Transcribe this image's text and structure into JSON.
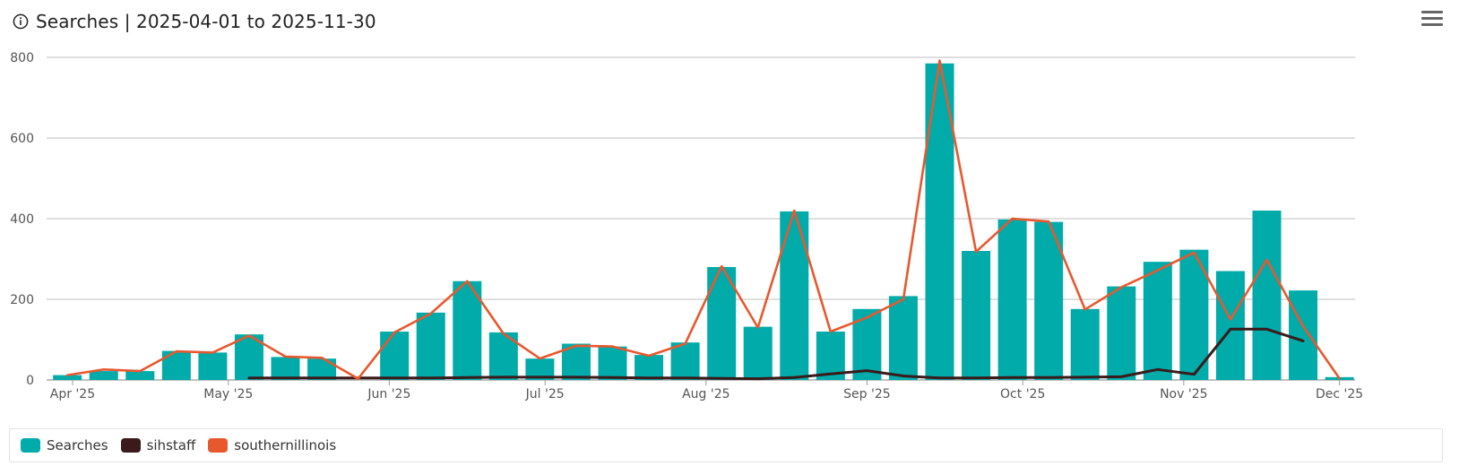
{
  "header": {
    "title": "Searches | 2025-04-01 to 2025-11-30"
  },
  "colors": {
    "searches": "#00ABAA",
    "sihstaff": "#3A1A1A",
    "southernillinois": "#E8582E",
    "grid": "#CCCCCC"
  },
  "chart_data": {
    "type": "bar",
    "title": "Searches | 2025-04-01 to 2025-11-30",
    "ylim": [
      0,
      800
    ],
    "yticks": [
      0,
      200,
      400,
      600,
      800
    ],
    "grid": true,
    "legend": "bottom-left",
    "xticks": [
      {
        "label": "Apr '25",
        "date": "2025-04-01"
      },
      {
        "label": "May '25",
        "date": "2025-05-01"
      },
      {
        "label": "Jun '25",
        "date": "2025-06-01"
      },
      {
        "label": "Jul '25",
        "date": "2025-07-01"
      },
      {
        "label": "Aug '25",
        "date": "2025-08-01"
      },
      {
        "label": "Sep '25",
        "date": "2025-09-01"
      },
      {
        "label": "Oct '25",
        "date": "2025-10-01"
      },
      {
        "label": "Nov '25",
        "date": "2025-11-01"
      },
      {
        "label": "Dec '25",
        "date": "2025-12-01"
      }
    ],
    "series": [
      {
        "name": "Searches",
        "kind": "bar",
        "points": [
          [
            "2025-03-31",
            12
          ],
          [
            "2025-04-07",
            22
          ],
          [
            "2025-04-14",
            22
          ],
          [
            "2025-04-21",
            72
          ],
          [
            "2025-04-28",
            68
          ],
          [
            "2025-05-05",
            113
          ],
          [
            "2025-05-12",
            57
          ],
          [
            "2025-05-19",
            53
          ],
          [
            "2025-06-02",
            120
          ],
          [
            "2025-06-09",
            167
          ],
          [
            "2025-06-16",
            245
          ],
          [
            "2025-06-23",
            118
          ],
          [
            "2025-06-30",
            53
          ],
          [
            "2025-07-07",
            90
          ],
          [
            "2025-07-14",
            83
          ],
          [
            "2025-07-21",
            62
          ],
          [
            "2025-07-28",
            93
          ],
          [
            "2025-08-04",
            280
          ],
          [
            "2025-08-11",
            132
          ],
          [
            "2025-08-18",
            418
          ],
          [
            "2025-08-25",
            120
          ],
          [
            "2025-09-01",
            176
          ],
          [
            "2025-09-08",
            208
          ],
          [
            "2025-09-15",
            785
          ],
          [
            "2025-09-22",
            320
          ],
          [
            "2025-09-29",
            398
          ],
          [
            "2025-10-06",
            392
          ],
          [
            "2025-10-13",
            176
          ],
          [
            "2025-10-20",
            232
          ],
          [
            "2025-10-27",
            293
          ],
          [
            "2025-11-03",
            323
          ],
          [
            "2025-11-10",
            270
          ],
          [
            "2025-11-17",
            420
          ],
          [
            "2025-11-24",
            222
          ],
          [
            "2025-12-01",
            7
          ]
        ]
      },
      {
        "name": "sihstaff",
        "kind": "line",
        "points": [
          [
            "2025-05-05",
            5
          ],
          [
            "2025-05-12",
            5
          ],
          [
            "2025-05-19",
            5
          ],
          [
            "2025-05-26",
            5
          ],
          [
            "2025-06-02",
            5
          ],
          [
            "2025-06-09",
            5
          ],
          [
            "2025-06-16",
            6
          ],
          [
            "2025-06-23",
            7
          ],
          [
            "2025-06-30",
            7
          ],
          [
            "2025-07-07",
            7
          ],
          [
            "2025-07-14",
            6
          ],
          [
            "2025-07-21",
            5
          ],
          [
            "2025-07-28",
            5
          ],
          [
            "2025-08-04",
            4
          ],
          [
            "2025-08-11",
            3
          ],
          [
            "2025-08-18",
            6
          ],
          [
            "2025-08-25",
            15
          ],
          [
            "2025-09-01",
            23
          ],
          [
            "2025-09-08",
            10
          ],
          [
            "2025-09-15",
            5
          ],
          [
            "2025-09-22",
            5
          ],
          [
            "2025-09-29",
            6
          ],
          [
            "2025-10-06",
            6
          ],
          [
            "2025-10-13",
            7
          ],
          [
            "2025-10-20",
            8
          ],
          [
            "2025-10-27",
            26
          ],
          [
            "2025-11-03",
            14
          ],
          [
            "2025-11-10",
            126
          ],
          [
            "2025-11-17",
            126
          ],
          [
            "2025-11-24",
            97
          ]
        ]
      },
      {
        "name": "southernillinois",
        "kind": "line",
        "points": [
          [
            "2025-03-31",
            12
          ],
          [
            "2025-04-07",
            26
          ],
          [
            "2025-04-14",
            22
          ],
          [
            "2025-04-21",
            71
          ],
          [
            "2025-04-28",
            68
          ],
          [
            "2025-05-05",
            110
          ],
          [
            "2025-05-12",
            58
          ],
          [
            "2025-05-19",
            55
          ],
          [
            "2025-05-26",
            3
          ],
          [
            "2025-06-02",
            118
          ],
          [
            "2025-06-09",
            165
          ],
          [
            "2025-06-16",
            245
          ],
          [
            "2025-06-23",
            115
          ],
          [
            "2025-06-30",
            53
          ],
          [
            "2025-07-07",
            85
          ],
          [
            "2025-07-14",
            83
          ],
          [
            "2025-07-21",
            60
          ],
          [
            "2025-07-28",
            90
          ],
          [
            "2025-08-04",
            282
          ],
          [
            "2025-08-11",
            130
          ],
          [
            "2025-08-18",
            420
          ],
          [
            "2025-08-25",
            120
          ],
          [
            "2025-09-01",
            155
          ],
          [
            "2025-09-08",
            200
          ],
          [
            "2025-09-15",
            792
          ],
          [
            "2025-09-22",
            318
          ],
          [
            "2025-09-29",
            400
          ],
          [
            "2025-10-06",
            393
          ],
          [
            "2025-10-13",
            175
          ],
          [
            "2025-10-20",
            230
          ],
          [
            "2025-10-27",
            272
          ],
          [
            "2025-11-03",
            316
          ],
          [
            "2025-11-10",
            150
          ],
          [
            "2025-11-17",
            298
          ],
          [
            "2025-11-24",
            133
          ],
          [
            "2025-12-01",
            4
          ]
        ]
      }
    ]
  },
  "legend": [
    {
      "label": "Searches",
      "color": "#00ABAA"
    },
    {
      "label": "sihstaff",
      "color": "#3A1A1A"
    },
    {
      "label": "southernillinois",
      "color": "#E8582E"
    }
  ]
}
